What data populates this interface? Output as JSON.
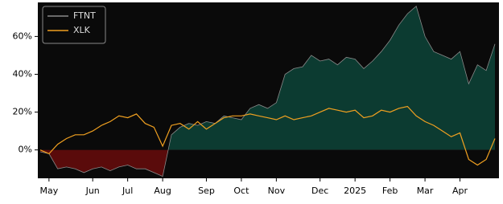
{
  "chart_data": {
    "type": "line",
    "categories": [
      null,
      "May",
      null,
      null,
      null,
      null,
      "Jun",
      null,
      null,
      null,
      "Jul",
      null,
      null,
      null,
      "Aug",
      null,
      null,
      null,
      null,
      "Sep",
      null,
      null,
      null,
      "Oct",
      null,
      null,
      null,
      "Nov",
      null,
      null,
      null,
      null,
      "Dec",
      null,
      null,
      null,
      "2025",
      null,
      null,
      null,
      "Feb",
      null,
      null,
      null,
      "Mar",
      null,
      null,
      null,
      "Apr",
      null,
      null,
      null,
      null
    ],
    "series": [
      {
        "name": "FTNT",
        "color": "#8a8a8a",
        "fill_positive": "#0c3b31",
        "fill_negative": "#5a0b0b",
        "values": [
          -1,
          -2,
          -10,
          -9,
          -10,
          -12,
          -10,
          -9,
          -11,
          -9,
          -8,
          -10,
          -10,
          -12,
          -14,
          8,
          12,
          14,
          13,
          15,
          14,
          18,
          17,
          16,
          22,
          24,
          22,
          25,
          40,
          43,
          44,
          50,
          47,
          48,
          45,
          49,
          48,
          43,
          47,
          52,
          58,
          66,
          72,
          76,
          60,
          52,
          50,
          48,
          52,
          35,
          45,
          42,
          56
        ]
      },
      {
        "name": "XLK",
        "color": "#f0a020",
        "values": [
          0,
          -2,
          3,
          6,
          8,
          8,
          10,
          13,
          15,
          18,
          17,
          19,
          14,
          12,
          2,
          13,
          14,
          11,
          15,
          11,
          14,
          17,
          18,
          18,
          19,
          18,
          17,
          16,
          18,
          16,
          17,
          18,
          20,
          22,
          21,
          20,
          21,
          17,
          18,
          21,
          20,
          22,
          23,
          18,
          15,
          13,
          10,
          7,
          9,
          -5,
          -8,
          -5,
          6
        ]
      }
    ],
    "ylim": [
      -15,
      78
    ],
    "yticks": [
      {
        "value": 0,
        "label": "0%"
      },
      {
        "value": 20,
        "label": "20%"
      },
      {
        "value": 40,
        "label": "40%"
      },
      {
        "value": 60,
        "label": "60%"
      }
    ],
    "background": "#0a0a0a",
    "grid": false,
    "legend": "upper left"
  }
}
